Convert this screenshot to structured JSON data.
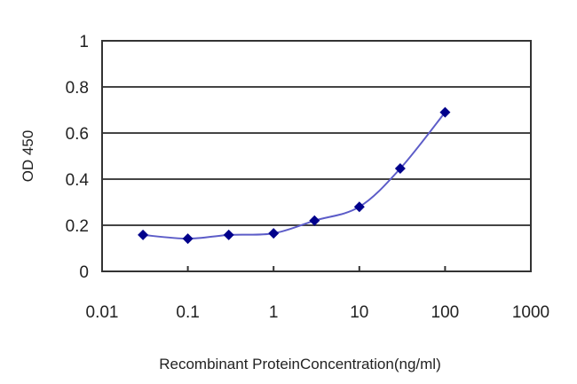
{
  "chart_data": {
    "type": "line",
    "title": "",
    "xlabel": "Recombinant ProteinConcentration(ng/ml)",
    "ylabel": "OD 450",
    "xscale": "log",
    "xlim": [
      0.01,
      1000
    ],
    "ylim": [
      0,
      1
    ],
    "x_ticks": [
      "0.01",
      "0.1",
      "1",
      "10",
      "100",
      "1000"
    ],
    "y_ticks": [
      "0",
      "0.2",
      "0.4",
      "0.6",
      "0.8",
      "1"
    ],
    "grid": {
      "horizontal": true,
      "vertical": false
    },
    "legend": null,
    "series": [
      {
        "name": "OD 450",
        "color": "#00008b",
        "line_color": "#5c5cc8",
        "marker": "diamond",
        "x": [
          0.03,
          0.1,
          0.3,
          1,
          3,
          10,
          30,
          100
        ],
        "values": [
          0.158,
          0.142,
          0.158,
          0.165,
          0.22,
          0.28,
          0.446,
          0.69
        ]
      }
    ]
  },
  "colors": {
    "frame": "#333333",
    "grid": "#444444",
    "background": "#ffffff"
  }
}
